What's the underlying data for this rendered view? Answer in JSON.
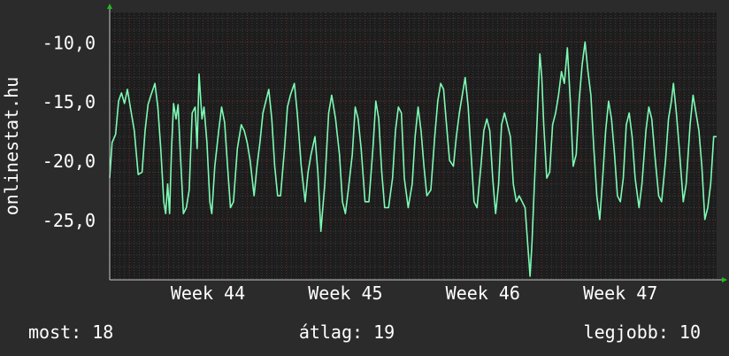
{
  "colors": {
    "background": "#2b2b2b",
    "plot_background": "#1d1d1d",
    "line": "#7dfab4",
    "grid_major": "#6b2a2a",
    "grid_minor": "#3c3c3c",
    "axis_arrow": "#22bb22",
    "text": "#ffffff"
  },
  "footer": {
    "current": "most: 18",
    "average": "átlag: 19",
    "best": "legjobb: 10"
  },
  "chart_data": {
    "type": "line",
    "title": "",
    "ylabel": "onlinestat.hu",
    "xlabel": "",
    "x_tick_labels": [
      "Week 44",
      "Week 45",
      "Week 46",
      "Week 47"
    ],
    "x_ticks_at_day": [
      5,
      12,
      19,
      26
    ],
    "x_range_days": [
      0,
      30.9
    ],
    "y_tick_labels": [
      "-10,0",
      "-15,0",
      "-20,0",
      "-25,0"
    ],
    "y_ticks": [
      -10,
      -15,
      -20,
      -25
    ],
    "ylim": [
      -30.1,
      -7.5
    ],
    "grid": true,
    "series": [
      {
        "values": [
          [
            0.0,
            -21.5
          ],
          [
            0.12,
            -18.5
          ],
          [
            0.3,
            -17.8
          ],
          [
            0.45,
            -15.0
          ],
          [
            0.6,
            -14.3
          ],
          [
            0.75,
            -15.2
          ],
          [
            0.9,
            -14.0
          ],
          [
            1.05,
            -15.5
          ],
          [
            1.25,
            -17.5
          ],
          [
            1.45,
            -21.2
          ],
          [
            1.65,
            -21.0
          ],
          [
            1.8,
            -17.5
          ],
          [
            1.95,
            -15.3
          ],
          [
            2.1,
            -14.5
          ],
          [
            2.3,
            -13.5
          ],
          [
            2.45,
            -15.5
          ],
          [
            2.6,
            -19.0
          ],
          [
            2.75,
            -23.5
          ],
          [
            2.85,
            -24.5
          ],
          [
            2.95,
            -22.0
          ],
          [
            3.05,
            -24.5
          ],
          [
            3.15,
            -19.0
          ],
          [
            3.25,
            -15.2
          ],
          [
            3.38,
            -16.5
          ],
          [
            3.48,
            -15.3
          ],
          [
            3.6,
            -19.5
          ],
          [
            3.75,
            -24.5
          ],
          [
            3.9,
            -24.0
          ],
          [
            4.05,
            -22.5
          ],
          [
            4.2,
            -16.0
          ],
          [
            4.35,
            -15.5
          ],
          [
            4.45,
            -19.0
          ],
          [
            4.55,
            -12.7
          ],
          [
            4.7,
            -16.5
          ],
          [
            4.8,
            -15.5
          ],
          [
            4.95,
            -18.5
          ],
          [
            5.1,
            -23.5
          ],
          [
            5.2,
            -24.5
          ],
          [
            5.35,
            -20.5
          ],
          [
            5.55,
            -17.5
          ],
          [
            5.7,
            -15.5
          ],
          [
            5.85,
            -16.8
          ],
          [
            6.0,
            -20.5
          ],
          [
            6.15,
            -24.0
          ],
          [
            6.3,
            -23.5
          ],
          [
            6.5,
            -19.0
          ],
          [
            6.7,
            -17.0
          ],
          [
            6.85,
            -17.5
          ],
          [
            7.0,
            -18.5
          ],
          [
            7.15,
            -20.0
          ],
          [
            7.35,
            -23.0
          ],
          [
            7.5,
            -20.5
          ],
          [
            7.65,
            -18.5
          ],
          [
            7.8,
            -16.0
          ],
          [
            7.95,
            -15.0
          ],
          [
            8.1,
            -14.0
          ],
          [
            8.25,
            -16.5
          ],
          [
            8.4,
            -20.5
          ],
          [
            8.55,
            -23.0
          ],
          [
            8.7,
            -23.0
          ],
          [
            8.9,
            -19.0
          ],
          [
            9.05,
            -15.5
          ],
          [
            9.2,
            -14.5
          ],
          [
            9.4,
            -13.5
          ],
          [
            9.55,
            -16.0
          ],
          [
            9.75,
            -20.5
          ],
          [
            9.95,
            -23.5
          ],
          [
            10.1,
            -21.0
          ],
          [
            10.25,
            -19.5
          ],
          [
            10.45,
            -18.0
          ],
          [
            10.6,
            -21.0
          ],
          [
            10.75,
            -26.0
          ],
          [
            10.95,
            -22.0
          ],
          [
            11.15,
            -16.0
          ],
          [
            11.3,
            -14.5
          ],
          [
            11.5,
            -16.5
          ],
          [
            11.7,
            -19.5
          ],
          [
            11.85,
            -23.5
          ],
          [
            12.0,
            -24.5
          ],
          [
            12.15,
            -22.5
          ],
          [
            12.35,
            -19.5
          ],
          [
            12.5,
            -15.5
          ],
          [
            12.65,
            -16.5
          ],
          [
            12.8,
            -19.0
          ],
          [
            13.0,
            -23.5
          ],
          [
            13.2,
            -23.5
          ],
          [
            13.4,
            -19.0
          ],
          [
            13.55,
            -15.0
          ],
          [
            13.7,
            -16.5
          ],
          [
            13.85,
            -21.0
          ],
          [
            14.0,
            -24.0
          ],
          [
            14.2,
            -24.0
          ],
          [
            14.4,
            -21.5
          ],
          [
            14.55,
            -17.5
          ],
          [
            14.7,
            -15.5
          ],
          [
            14.85,
            -16.0
          ],
          [
            15.0,
            -21.5
          ],
          [
            15.2,
            -24.0
          ],
          [
            15.4,
            -22.0
          ],
          [
            15.55,
            -18.0
          ],
          [
            15.7,
            -15.5
          ],
          [
            15.85,
            -17.5
          ],
          [
            16.0,
            -20.5
          ],
          [
            16.15,
            -23.0
          ],
          [
            16.35,
            -22.5
          ],
          [
            16.55,
            -18.0
          ],
          [
            16.7,
            -15.0
          ],
          [
            16.85,
            -13.5
          ],
          [
            17.0,
            -14.0
          ],
          [
            17.15,
            -17.0
          ],
          [
            17.3,
            -20.0
          ],
          [
            17.5,
            -20.5
          ],
          [
            17.65,
            -18.0
          ],
          [
            17.8,
            -16.0
          ],
          [
            17.95,
            -14.5
          ],
          [
            18.1,
            -13.0
          ],
          [
            18.25,
            -15.5
          ],
          [
            18.4,
            -19.5
          ],
          [
            18.55,
            -23.5
          ],
          [
            18.7,
            -24.0
          ],
          [
            18.9,
            -20.5
          ],
          [
            19.05,
            -17.5
          ],
          [
            19.2,
            -16.5
          ],
          [
            19.35,
            -17.5
          ],
          [
            19.5,
            -21.5
          ],
          [
            19.65,
            -24.5
          ],
          [
            19.8,
            -22.0
          ],
          [
            19.95,
            -17.0
          ],
          [
            20.1,
            -16.0
          ],
          [
            20.25,
            -17.0
          ],
          [
            20.4,
            -18.0
          ],
          [
            20.55,
            -22.0
          ],
          [
            20.7,
            -23.5
          ],
          [
            20.85,
            -23.0
          ],
          [
            21.0,
            -23.5
          ],
          [
            21.15,
            -24.0
          ],
          [
            21.3,
            -27.5
          ],
          [
            21.4,
            -29.8
          ],
          [
            21.5,
            -27.0
          ],
          [
            21.6,
            -23.0
          ],
          [
            21.7,
            -19.0
          ],
          [
            21.8,
            -15.0
          ],
          [
            21.9,
            -11.0
          ],
          [
            22.0,
            -13.0
          ],
          [
            22.1,
            -17.0
          ],
          [
            22.25,
            -21.5
          ],
          [
            22.4,
            -21.0
          ],
          [
            22.55,
            -17.0
          ],
          [
            22.7,
            -16.0
          ],
          [
            22.85,
            -14.5
          ],
          [
            23.0,
            -12.5
          ],
          [
            23.15,
            -13.5
          ],
          [
            23.3,
            -10.5
          ],
          [
            23.45,
            -15.0
          ],
          [
            23.6,
            -20.5
          ],
          [
            23.75,
            -19.5
          ],
          [
            23.9,
            -15.0
          ],
          [
            24.05,
            -12.0
          ],
          [
            24.2,
            -10.0
          ],
          [
            24.35,
            -12.5
          ],
          [
            24.5,
            -14.5
          ],
          [
            24.65,
            -19.0
          ],
          [
            24.8,
            -23.0
          ],
          [
            24.95,
            -25.0
          ],
          [
            25.1,
            -21.5
          ],
          [
            25.25,
            -17.5
          ],
          [
            25.4,
            -15.0
          ],
          [
            25.55,
            -16.5
          ],
          [
            25.7,
            -19.5
          ],
          [
            25.85,
            -23.0
          ],
          [
            26.0,
            -23.5
          ],
          [
            26.15,
            -21.5
          ],
          [
            26.3,
            -17.0
          ],
          [
            26.45,
            -16.0
          ],
          [
            26.6,
            -18.0
          ],
          [
            26.75,
            -21.5
          ],
          [
            26.95,
            -24.0
          ],
          [
            27.1,
            -22.0
          ],
          [
            27.3,
            -17.5
          ],
          [
            27.45,
            -15.5
          ],
          [
            27.6,
            -16.5
          ],
          [
            27.75,
            -19.5
          ],
          [
            27.95,
            -23.0
          ],
          [
            28.1,
            -23.5
          ],
          [
            28.3,
            -20.0
          ],
          [
            28.45,
            -16.5
          ],
          [
            28.6,
            -15.0
          ],
          [
            28.7,
            -13.5
          ],
          [
            28.85,
            -16.0
          ],
          [
            29.0,
            -19.0
          ],
          [
            29.2,
            -23.5
          ],
          [
            29.35,
            -22.0
          ],
          [
            29.55,
            -17.0
          ],
          [
            29.7,
            -14.5
          ],
          [
            29.85,
            -16.0
          ],
          [
            30.0,
            -17.5
          ],
          [
            30.15,
            -20.5
          ],
          [
            30.3,
            -25.0
          ],
          [
            30.45,
            -24.0
          ],
          [
            30.6,
            -22.0
          ],
          [
            30.75,
            -18.0
          ],
          [
            30.9,
            -18.0
          ]
        ]
      }
    ]
  }
}
